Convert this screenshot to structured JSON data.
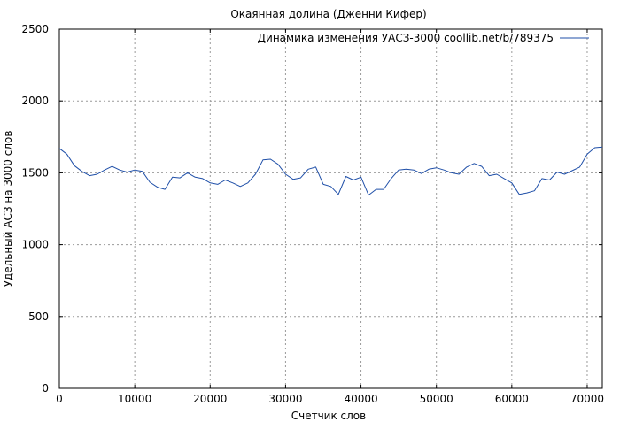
{
  "chart_data": {
    "type": "line",
    "title": "Окаянная долина (Дженни Кифер)",
    "xlabel": "Счетчик слов",
    "ylabel": "Удельный АСЗ на 3000 слов",
    "xlim": [
      0,
      72000
    ],
    "ylim": [
      0,
      2500
    ],
    "x_ticks": [
      0,
      10000,
      20000,
      30000,
      40000,
      50000,
      60000,
      70000
    ],
    "y_ticks": [
      0,
      500,
      1000,
      1500,
      2000,
      2500
    ],
    "grid": true,
    "legend_position": "top-right",
    "series": [
      {
        "name": "Динамика изменения УАСЗ-3000 coollib.net/b/789375",
        "color": "#1f4fa8",
        "x": [
          0,
          1000,
          2000,
          3000,
          4000,
          5000,
          6000,
          7000,
          8000,
          9000,
          10000,
          11000,
          12000,
          13000,
          14000,
          15000,
          16000,
          17000,
          18000,
          19000,
          20000,
          21000,
          22000,
          23000,
          24000,
          25000,
          26000,
          27000,
          28000,
          29000,
          30000,
          31000,
          32000,
          33000,
          34000,
          35000,
          36000,
          37000,
          38000,
          39000,
          40000,
          41000,
          42000,
          43000,
          44000,
          45000,
          46000,
          47000,
          48000,
          49000,
          50000,
          51000,
          52000,
          53000,
          54000,
          55000,
          56000,
          57000,
          58000,
          59000,
          60000,
          61000,
          62000,
          63000,
          64000,
          65000,
          66000,
          67000,
          68000,
          69000,
          70000,
          71000,
          72000
        ],
        "y": [
          1670,
          1630,
          1550,
          1510,
          1480,
          1490,
          1520,
          1545,
          1520,
          1505,
          1520,
          1510,
          1435,
          1400,
          1385,
          1470,
          1465,
          1500,
          1470,
          1460,
          1430,
          1420,
          1450,
          1430,
          1405,
          1430,
          1490,
          1590,
          1595,
          1560,
          1490,
          1455,
          1465,
          1525,
          1540,
          1420,
          1405,
          1350,
          1475,
          1450,
          1470,
          1345,
          1385,
          1385,
          1460,
          1520,
          1525,
          1520,
          1495,
          1525,
          1535,
          1520,
          1500,
          1490,
          1540,
          1565,
          1545,
          1480,
          1490,
          1460,
          1430,
          1350,
          1360,
          1375,
          1460,
          1450,
          1505,
          1490,
          1515,
          1540,
          1630,
          1675,
          1680
        ]
      }
    ]
  }
}
